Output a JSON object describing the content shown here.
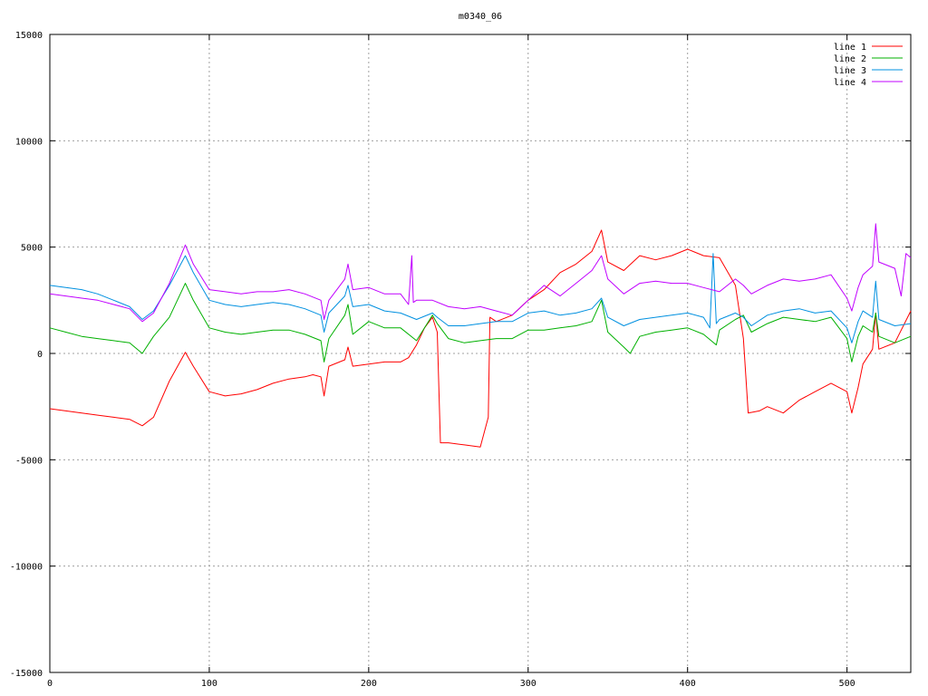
{
  "chart_data": {
    "type": "line",
    "title": "m0340_06",
    "xlabel": "",
    "ylabel": "",
    "xlim": [
      0,
      540
    ],
    "ylim": [
      -15000,
      15000
    ],
    "xticks": [
      0,
      100,
      200,
      300,
      400,
      500
    ],
    "yticks": [
      -15000,
      -10000,
      -5000,
      0,
      5000,
      10000,
      15000
    ],
    "grid": true,
    "legend_position": "top-right",
    "series": [
      {
        "name": "line 1",
        "color": "#ff0000",
        "x": [
          0,
          10,
          20,
          30,
          40,
          50,
          58,
          65,
          75,
          85,
          90,
          100,
          110,
          120,
          130,
          140,
          150,
          160,
          165,
          170,
          172,
          175,
          185,
          187,
          190,
          200,
          210,
          220,
          225,
          230,
          235,
          240,
          243,
          245,
          250,
          260,
          270,
          275,
          276,
          280,
          290,
          300,
          310,
          320,
          330,
          340,
          346,
          350,
          360,
          370,
          380,
          390,
          400,
          410,
          420,
          430,
          435,
          438,
          445,
          450,
          460,
          470,
          480,
          490,
          500,
          503,
          507,
          510,
          516,
          518,
          520,
          530,
          540
        ],
        "y": [
          -2600,
          -2700,
          -2800,
          -2900,
          -3000,
          -3100,
          -3400,
          -3000,
          -1300,
          50,
          -600,
          -1800,
          -2000,
          -1900,
          -1700,
          -1400,
          -1200,
          -1100,
          -1000,
          -1100,
          -2000,
          -600,
          -300,
          300,
          -600,
          -500,
          -400,
          -400,
          -200,
          400,
          1200,
          1700,
          1000,
          -4200,
          -4200,
          -4300,
          -4400,
          -3000,
          1700,
          1500,
          1800,
          2500,
          3000,
          3800,
          4200,
          4800,
          5800,
          4300,
          3900,
          4600,
          4400,
          4600,
          4900,
          4600,
          4500,
          3200,
          700,
          -2800,
          -2700,
          -2500,
          -2800,
          -2200,
          -1800,
          -1400,
          -1800,
          -2800,
          -1600,
          -500,
          200,
          1900,
          200,
          500,
          2000
        ]
      },
      {
        "name": "line 2",
        "color": "#00b000",
        "x": [
          0,
          10,
          20,
          30,
          40,
          50,
          58,
          65,
          75,
          85,
          90,
          100,
          110,
          120,
          130,
          140,
          150,
          160,
          170,
          172,
          175,
          185,
          187,
          190,
          200,
          210,
          220,
          230,
          240,
          243,
          250,
          260,
          270,
          280,
          290,
          300,
          310,
          320,
          330,
          340,
          346,
          350,
          360,
          364,
          370,
          380,
          390,
          400,
          410,
          418,
          420,
          430,
          435,
          440,
          450,
          460,
          470,
          480,
          490,
          500,
          503,
          507,
          510,
          516,
          518,
          520,
          530,
          540
        ],
        "y": [
          1200,
          1000,
          800,
          700,
          600,
          500,
          0,
          800,
          1700,
          3300,
          2500,
          1200,
          1000,
          900,
          1000,
          1100,
          1100,
          900,
          600,
          -400,
          700,
          1800,
          2300,
          900,
          1500,
          1200,
          1200,
          600,
          1800,
          1400,
          700,
          500,
          600,
          700,
          700,
          1100,
          1100,
          1200,
          1300,
          1500,
          2500,
          1000,
          300,
          0,
          800,
          1000,
          1100,
          1200,
          900,
          400,
          1100,
          1600,
          1800,
          1000,
          1400,
          1700,
          1600,
          1500,
          1700,
          700,
          -400,
          800,
          1300,
          1000,
          1900,
          800,
          500,
          800
        ]
      },
      {
        "name": "line 3",
        "color": "#0090e0",
        "x": [
          0,
          10,
          20,
          30,
          40,
          50,
          58,
          65,
          75,
          85,
          90,
          100,
          110,
          120,
          130,
          140,
          150,
          160,
          170,
          172,
          175,
          185,
          187,
          190,
          200,
          210,
          220,
          230,
          240,
          243,
          250,
          260,
          270,
          280,
          290,
          300,
          310,
          320,
          330,
          340,
          346,
          350,
          360,
          370,
          380,
          390,
          400,
          410,
          414,
          416,
          418,
          420,
          430,
          435,
          440,
          450,
          460,
          470,
          480,
          490,
          500,
          503,
          507,
          510,
          516,
          518,
          520,
          530,
          540
        ],
        "y": [
          3200,
          3100,
          3000,
          2800,
          2500,
          2200,
          1600,
          2000,
          3200,
          4600,
          3800,
          2500,
          2300,
          2200,
          2300,
          2400,
          2300,
          2100,
          1800,
          1000,
          1900,
          2700,
          3200,
          2200,
          2300,
          2000,
          1900,
          1600,
          1900,
          1700,
          1300,
          1300,
          1400,
          1500,
          1500,
          1900,
          2000,
          1800,
          1900,
          2100,
          2600,
          1700,
          1300,
          1600,
          1700,
          1800,
          1900,
          1700,
          1200,
          4700,
          1400,
          1600,
          1900,
          1700,
          1300,
          1800,
          2000,
          2100,
          1900,
          2000,
          1200,
          500,
          1500,
          2000,
          1700,
          3400,
          1600,
          1300,
          1400
        ]
      },
      {
        "name": "line 4",
        "color": "#c000ff",
        "x": [
          0,
          10,
          20,
          30,
          40,
          50,
          58,
          65,
          75,
          85,
          90,
          100,
          110,
          120,
          130,
          140,
          150,
          160,
          170,
          172,
          175,
          185,
          187,
          190,
          200,
          210,
          220,
          225,
          227,
          228,
          230,
          240,
          250,
          260,
          270,
          280,
          290,
          300,
          310,
          320,
          330,
          340,
          346,
          350,
          360,
          370,
          380,
          390,
          400,
          410,
          420,
          430,
          435,
          440,
          450,
          460,
          470,
          480,
          490,
          500,
          503,
          507,
          510,
          516,
          518,
          520,
          530,
          534,
          537,
          540
        ],
        "y": [
          2800,
          2700,
          2600,
          2500,
          2300,
          2100,
          1500,
          1900,
          3300,
          5100,
          4200,
          3000,
          2900,
          2800,
          2900,
          2900,
          3000,
          2800,
          2500,
          1600,
          2500,
          3500,
          4200,
          3000,
          3100,
          2800,
          2800,
          2300,
          4600,
          2400,
          2500,
          2500,
          2200,
          2100,
          2200,
          2000,
          1800,
          2500,
          3200,
          2700,
          3300,
          3900,
          4600,
          3500,
          2800,
          3300,
          3400,
          3300,
          3300,
          3100,
          2900,
          3500,
          3200,
          2800,
          3200,
          3500,
          3400,
          3500,
          3700,
          2600,
          2000,
          3100,
          3700,
          4100,
          6100,
          4300,
          4000,
          2700,
          4700,
          4500
        ]
      }
    ]
  }
}
